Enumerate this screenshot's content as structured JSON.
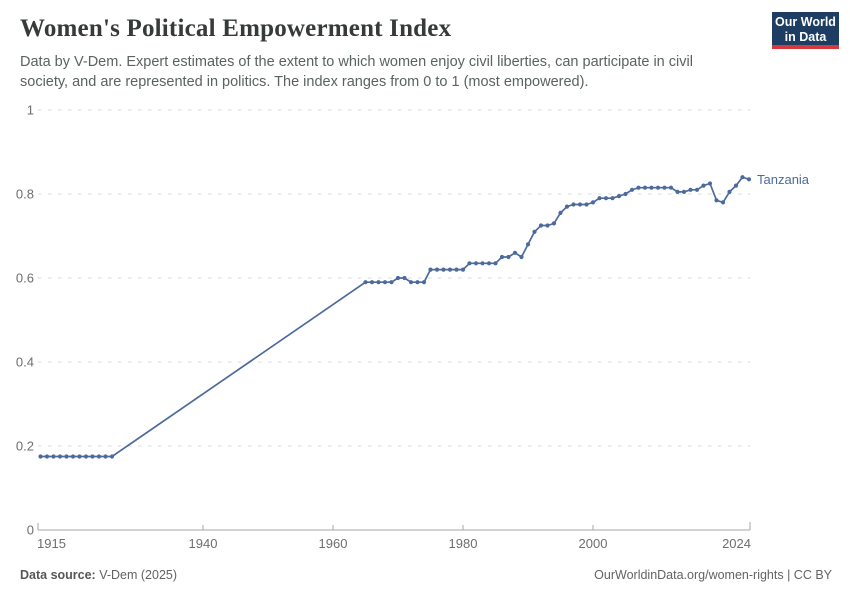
{
  "header": {
    "title": "Women's Political Empowerment Index",
    "subtitle": "Data by V-Dem. Expert estimates of the extent to which women enjoy civil liberties, can participate in civil society, and are represented in politics. The index ranges from 0 to 1 (most empowered).",
    "logo": {
      "line1": "Our World",
      "line2": "in Data",
      "bg_color": "#1d3d63",
      "accent_color": "#d7383e"
    }
  },
  "chart_data": {
    "type": "line",
    "title": "Women's Political Empowerment Index",
    "xlabel": "",
    "ylabel": "",
    "xlim": [
      1915,
      2024
    ],
    "ylim": [
      0,
      1
    ],
    "x_ticks": [
      1915,
      1940,
      1960,
      1980,
      2000,
      2024
    ],
    "y_ticks": [
      0,
      0.2,
      0.4,
      0.6,
      0.8,
      1
    ],
    "grid": "dashed-horizontal",
    "legend_position": "end-of-line-label",
    "interpolated_gap_years": [
      1927,
      1964
    ],
    "colors": {
      "line": "#4c6a9c",
      "grid": "#dbdbdb",
      "axis": "#a7a7a7",
      "tick_text": "#6e6e6e"
    },
    "series": [
      {
        "name": "Tanzania",
        "color": "#4c6a9c",
        "points": [
          [
            1915,
            0.175
          ],
          [
            1916,
            0.175
          ],
          [
            1917,
            0.175
          ],
          [
            1918,
            0.175
          ],
          [
            1919,
            0.175
          ],
          [
            1920,
            0.175
          ],
          [
            1921,
            0.175
          ],
          [
            1922,
            0.175
          ],
          [
            1923,
            0.175
          ],
          [
            1924,
            0.175
          ],
          [
            1925,
            0.175
          ],
          [
            1926,
            0.175
          ],
          [
            1965,
            0.59
          ],
          [
            1966,
            0.59
          ],
          [
            1967,
            0.59
          ],
          [
            1968,
            0.59
          ],
          [
            1969,
            0.59
          ],
          [
            1970,
            0.6
          ],
          [
            1971,
            0.6
          ],
          [
            1972,
            0.59
          ],
          [
            1973,
            0.59
          ],
          [
            1974,
            0.59
          ],
          [
            1975,
            0.62
          ],
          [
            1976,
            0.62
          ],
          [
            1977,
            0.62
          ],
          [
            1978,
            0.62
          ],
          [
            1979,
            0.62
          ],
          [
            1980,
            0.62
          ],
          [
            1981,
            0.635
          ],
          [
            1982,
            0.635
          ],
          [
            1983,
            0.635
          ],
          [
            1984,
            0.635
          ],
          [
            1985,
            0.635
          ],
          [
            1986,
            0.65
          ],
          [
            1987,
            0.65
          ],
          [
            1988,
            0.66
          ],
          [
            1989,
            0.65
          ],
          [
            1990,
            0.68
          ],
          [
            1991,
            0.71
          ],
          [
            1992,
            0.725
          ],
          [
            1993,
            0.725
          ],
          [
            1994,
            0.73
          ],
          [
            1995,
            0.755
          ],
          [
            1996,
            0.77
          ],
          [
            1997,
            0.775
          ],
          [
            1998,
            0.775
          ],
          [
            1999,
            0.775
          ],
          [
            2000,
            0.78
          ],
          [
            2001,
            0.79
          ],
          [
            2002,
            0.79
          ],
          [
            2003,
            0.79
          ],
          [
            2004,
            0.795
          ],
          [
            2005,
            0.8
          ],
          [
            2006,
            0.81
          ],
          [
            2007,
            0.815
          ],
          [
            2008,
            0.815
          ],
          [
            2009,
            0.815
          ],
          [
            2010,
            0.815
          ],
          [
            2011,
            0.815
          ],
          [
            2012,
            0.815
          ],
          [
            2013,
            0.805
          ],
          [
            2014,
            0.805
          ],
          [
            2015,
            0.81
          ],
          [
            2016,
            0.81
          ],
          [
            2017,
            0.82
          ],
          [
            2018,
            0.825
          ],
          [
            2019,
            0.785
          ],
          [
            2020,
            0.78
          ],
          [
            2021,
            0.805
          ],
          [
            2022,
            0.82
          ],
          [
            2023,
            0.84
          ],
          [
            2024,
            0.835
          ]
        ]
      }
    ]
  },
  "footer": {
    "source_label": "Data source:",
    "source_value": " V-Dem (2025)",
    "right_text": "OurWorldinData.org/women-rights | CC BY"
  }
}
